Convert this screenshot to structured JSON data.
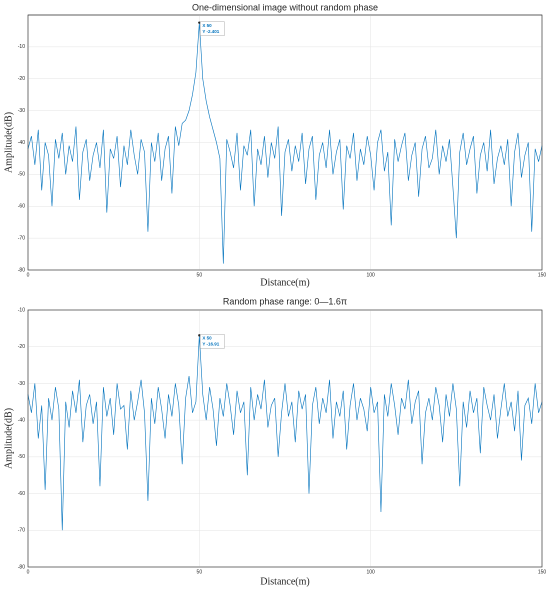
{
  "chart_data": [
    {
      "type": "line",
      "title": "One-dimensional image without random phase",
      "x_label": "Distance(m)",
      "y_label": "Amplitude(dB)",
      "xlim": [
        0,
        150
      ],
      "xticks": [
        0,
        50,
        100,
        150
      ],
      "ylim": [
        -80,
        0
      ],
      "yticks": [
        -80,
        -70,
        -60,
        -50,
        -40,
        -30,
        -20,
        -10
      ],
      "grid": true,
      "x": [
        0,
        1,
        2,
        3,
        4,
        5,
        6,
        7,
        8,
        9,
        10,
        11,
        12,
        13,
        14,
        15,
        16,
        17,
        18,
        19,
        20,
        21,
        22,
        23,
        24,
        25,
        26,
        27,
        28,
        29,
        30,
        31,
        32,
        33,
        34,
        35,
        36,
        37,
        38,
        39,
        40,
        41,
        42,
        43,
        44,
        45,
        46,
        47,
        48,
        49,
        50,
        51,
        52,
        53,
        54,
        55,
        56,
        57,
        58,
        59,
        60,
        61,
        62,
        63,
        64,
        65,
        66,
        67,
        68,
        69,
        70,
        71,
        72,
        73,
        74,
        75,
        76,
        77,
        78,
        79,
        80,
        81,
        82,
        83,
        84,
        85,
        86,
        87,
        88,
        89,
        90,
        91,
        92,
        93,
        94,
        95,
        96,
        97,
        98,
        99,
        100,
        101,
        102,
        103,
        104,
        105,
        106,
        107,
        108,
        109,
        110,
        111,
        112,
        113,
        114,
        115,
        116,
        117,
        118,
        119,
        120,
        121,
        122,
        123,
        124,
        125,
        126,
        127,
        128,
        129,
        130,
        131,
        132,
        133,
        134,
        135,
        136,
        137,
        138,
        139,
        140,
        141,
        142,
        143,
        144,
        145,
        146,
        147,
        148,
        149,
        150
      ],
      "series": [
        {
          "color": "#0072bd",
          "values": [
            -42,
            -38,
            -47,
            -36,
            -55,
            -40,
            -44,
            -60,
            -39,
            -45,
            -37,
            -50,
            -41,
            -46,
            -35,
            -58,
            -43,
            -39,
            -52,
            -44,
            -40,
            -48,
            -36,
            -62,
            -42,
            -45,
            -38,
            -54,
            -41,
            -47,
            -36,
            -44,
            -50,
            -39,
            -43,
            -68,
            -40,
            -46,
            -37,
            -52,
            -42,
            -38,
            -56,
            -35,
            -41,
            -34,
            -33,
            -30,
            -25,
            -18,
            -2.401,
            -20,
            -27,
            -32,
            -36,
            -40,
            -45,
            -78,
            -39,
            -43,
            -48,
            -37,
            -55,
            -41,
            -44,
            -36,
            -60,
            -42,
            -47,
            -38,
            -51,
            -40,
            -45,
            -35,
            -63,
            -43,
            -39,
            -49,
            -41,
            -46,
            -37,
            -53,
            -42,
            -38,
            -58,
            -44,
            -40,
            -48,
            -36,
            -50,
            -43,
            -39,
            -61,
            -41,
            -45,
            -37,
            -52,
            -42,
            -47,
            -38,
            -44,
            -55,
            -40,
            -36,
            -49,
            -43,
            -66,
            -39,
            -46,
            -41,
            -37,
            -52,
            -44,
            -40,
            -57,
            -42,
            -38,
            -48,
            -45,
            -36,
            -50,
            -41,
            -46,
            -39,
            -54,
            -70,
            -43,
            -37,
            -47,
            -42,
            -38,
            -56,
            -44,
            -40,
            -49,
            -36,
            -53,
            -45,
            -41,
            -47,
            -39,
            -60,
            -43,
            -37,
            -51,
            -44,
            -40,
            -68,
            -42,
            -46,
            -41
          ]
        }
      ],
      "annotations": [
        {
          "x": 50,
          "y": -2.401,
          "label_x": "X 50",
          "label_y": "Y -2.401"
        }
      ]
    },
    {
      "type": "line",
      "title": "Random phase range: 0—1.6π",
      "x_label": "Distance(m)",
      "y_label": "Amplitude(dB)",
      "xlim": [
        0,
        150
      ],
      "xticks": [
        0,
        50,
        100,
        150
      ],
      "ylim": [
        -80,
        -10
      ],
      "yticks": [
        -80,
        -70,
        -60,
        -50,
        -40,
        -30,
        -20,
        -10
      ],
      "grid": true,
      "x": [
        0,
        1,
        2,
        3,
        4,
        5,
        6,
        7,
        8,
        9,
        10,
        11,
        12,
        13,
        14,
        15,
        16,
        17,
        18,
        19,
        20,
        21,
        22,
        23,
        24,
        25,
        26,
        27,
        28,
        29,
        30,
        31,
        32,
        33,
        34,
        35,
        36,
        37,
        38,
        39,
        40,
        41,
        42,
        43,
        44,
        45,
        46,
        47,
        48,
        49,
        50,
        51,
        52,
        53,
        54,
        55,
        56,
        57,
        58,
        59,
        60,
        61,
        62,
        63,
        64,
        65,
        66,
        67,
        68,
        69,
        70,
        71,
        72,
        73,
        74,
        75,
        76,
        77,
        78,
        79,
        80,
        81,
        82,
        83,
        84,
        85,
        86,
        87,
        88,
        89,
        90,
        91,
        92,
        93,
        94,
        95,
        96,
        97,
        98,
        99,
        100,
        101,
        102,
        103,
        104,
        105,
        106,
        107,
        108,
        109,
        110,
        111,
        112,
        113,
        114,
        115,
        116,
        117,
        118,
        119,
        120,
        121,
        122,
        123,
        124,
        125,
        126,
        127,
        128,
        129,
        130,
        131,
        132,
        133,
        134,
        135,
        136,
        137,
        138,
        139,
        140,
        141,
        142,
        143,
        144,
        145,
        146,
        147,
        148,
        149,
        150
      ],
      "series": [
        {
          "color": "#0072bd",
          "values": [
            -33,
            -38,
            -30,
            -45,
            -36,
            -59,
            -34,
            -40,
            -31,
            -37,
            -70,
            -35,
            -42,
            -32,
            -38,
            -29,
            -46,
            -36,
            -33,
            -41,
            -35,
            -58,
            -31,
            -39,
            -34,
            -44,
            -30,
            -37,
            -36,
            -48,
            -32,
            -40,
            -35,
            -29,
            -38,
            -62,
            -34,
            -41,
            -31,
            -37,
            -45,
            -33,
            -39,
            -30,
            -36,
            -52,
            -34,
            -28,
            -38,
            -35,
            -16.91,
            -33,
            -40,
            -31,
            -37,
            -47,
            -34,
            -39,
            -30,
            -36,
            -44,
            -32,
            -38,
            -35,
            -55,
            -31,
            -40,
            -33,
            -37,
            -29,
            -42,
            -36,
            -34,
            -50,
            -38,
            -30,
            -39,
            -35,
            -46,
            -32,
            -37,
            -33,
            -60,
            -36,
            -31,
            -41,
            -34,
            -38,
            -29,
            -45,
            -35,
            -39,
            -32,
            -48,
            -36,
            -30,
            -40,
            -34,
            -37,
            -43,
            -31,
            -38,
            -35,
            -65,
            -33,
            -39,
            -30,
            -36,
            -44,
            -34,
            -37,
            -29,
            -41,
            -35,
            -32,
            -52,
            -38,
            -34,
            -40,
            -31,
            -36,
            -46,
            -33,
            -39,
            -30,
            -37,
            -58,
            -35,
            -42,
            -32,
            -38,
            -34,
            -49,
            -31,
            -36,
            -40,
            -33,
            -45,
            -37,
            -30,
            -39,
            -35,
            -43,
            -32,
            -51,
            -36,
            -34,
            -41,
            -30,
            -38,
            -35
          ]
        }
      ],
      "annotations": [
        {
          "x": 50,
          "y": -16.91,
          "label_x": "X 50",
          "label_y": "Y -16.91"
        }
      ]
    }
  ]
}
